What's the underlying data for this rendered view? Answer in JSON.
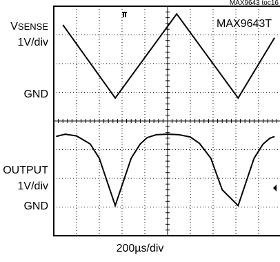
{
  "document_id": "MAX9643 toc16",
  "part_label": "MAX9643T",
  "time_scale": "200µs/div",
  "ch1": {
    "name_main": "V",
    "name_sub": "SENSE",
    "scale": "1V/div",
    "ground": "GND"
  },
  "ch2": {
    "name": "OUTPUT",
    "scale": "1V/div",
    "ground": "GND"
  },
  "chart_data": {
    "type": "line",
    "title": "",
    "xlabel": "200µs/div",
    "grid": true,
    "x_divisions": 10,
    "y_divisions": 8,
    "series": [
      {
        "name": "VSENSE",
        "unit": "div",
        "x": [
          0.4,
          2.7,
          5.4,
          8.1,
          9.7
        ],
        "y": [
          7.35,
          4.8,
          7.73,
          4.8,
          6.9
        ]
      },
      {
        "name": "OUTPUT",
        "x": [
          0.1,
          0.5,
          1.0,
          1.6,
          2.0,
          2.7,
          3.4,
          3.8,
          4.1,
          4.5,
          5.0,
          5.5,
          6.0,
          6.4,
          6.9,
          7.4,
          8.1,
          8.8,
          9.2,
          9.5,
          9.7
        ],
        "y": [
          3.46,
          3.54,
          3.48,
          3.2,
          2.7,
          1.05,
          2.7,
          3.2,
          3.42,
          3.52,
          3.54,
          3.52,
          3.44,
          3.22,
          2.7,
          1.6,
          1.05,
          2.7,
          3.2,
          3.4,
          3.46
        ]
      }
    ]
  }
}
